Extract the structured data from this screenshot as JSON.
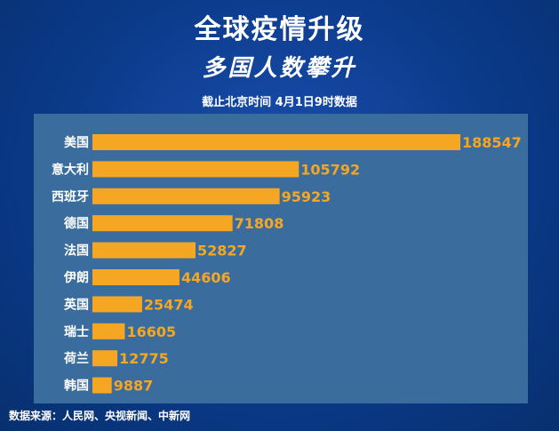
{
  "header": {
    "title": "全球疫情升级",
    "subtitle": "多国人数攀升",
    "note": "截止北京时间 4月1日9时数据"
  },
  "footer": {
    "source": "数据来源：人民网、央视新闻、中新网"
  },
  "colors": {
    "background": "#0b3a8a",
    "panel": "#3a6d9e",
    "bar": "#f5a623",
    "value_label": "#f5a623",
    "category_label": "#ffffff"
  },
  "chart_data": {
    "type": "bar",
    "orientation": "horizontal",
    "categories": [
      "美国",
      "意大利",
      "西班牙",
      "德国",
      "法国",
      "伊朗",
      "英国",
      "瑞士",
      "荷兰",
      "韩国"
    ],
    "values": [
      188547,
      105792,
      95923,
      71808,
      52827,
      44606,
      25474,
      16605,
      12775,
      9887
    ],
    "xlim": [
      0,
      188547
    ],
    "grid": false,
    "legend": "none"
  }
}
